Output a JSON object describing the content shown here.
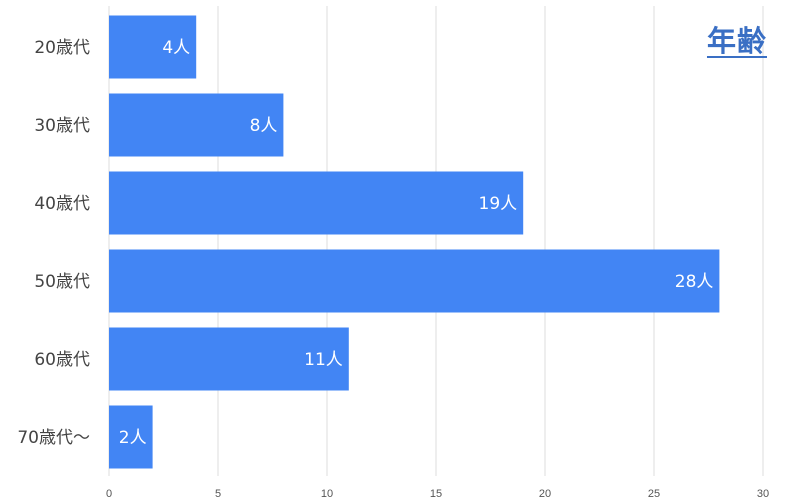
{
  "chart_data": {
    "type": "bar",
    "orientation": "horizontal",
    "title": "年齢",
    "categories": [
      "20歳代",
      "30歳代",
      "40歳代",
      "50歳代",
      "60歳代",
      "70歳代〜"
    ],
    "values": [
      4,
      8,
      19,
      28,
      11,
      2
    ],
    "data_labels": [
      "4人",
      "8人",
      "19人",
      "28人",
      "11人",
      "2人"
    ],
    "xlim": [
      0,
      30
    ],
    "x_ticks": [
      0,
      5,
      10,
      15,
      20,
      25,
      30
    ],
    "grid": true,
    "bar_color": "#4285f4",
    "gridline_color": "#dddddd",
    "title_color": "#3a6fc4"
  }
}
